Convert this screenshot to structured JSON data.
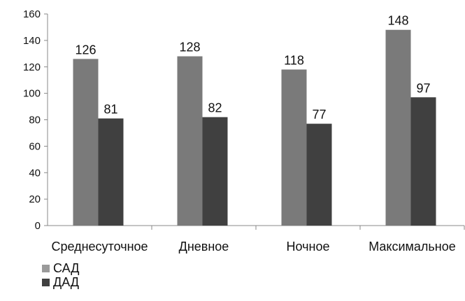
{
  "chart_data": {
    "type": "bar",
    "title": "",
    "xlabel": "",
    "ylabel": "",
    "categories": [
      "Среднесуточное",
      "Дневное",
      "Ночное",
      "Максимальное"
    ],
    "series": [
      {
        "name": "САД",
        "values": [
          126,
          128,
          118,
          148
        ],
        "color": "#7a7a7a"
      },
      {
        "name": "ДАД",
        "values": [
          81,
          82,
          77,
          97
        ],
        "color": "#404040"
      }
    ],
    "ylim": [
      0,
      160
    ],
    "yticks": [
      0,
      20,
      40,
      60,
      80,
      100,
      120,
      140,
      160
    ],
    "grid": false,
    "data_labels": true,
    "legend_position": "bottom-left"
  }
}
